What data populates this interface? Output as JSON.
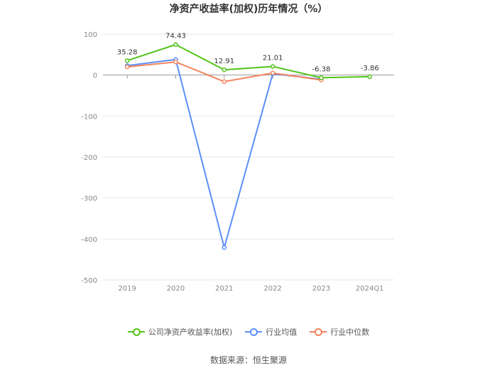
{
  "title": "净资产收益率(加权)历年情况（%）",
  "source": "数据来源：恒生聚源",
  "colors": {
    "company": "#52c41a",
    "industry_avg": "#5b8ff9",
    "industry_median": "#f4845f",
    "grid": "#e6e6e6",
    "axis": "#999999"
  },
  "chart_data": {
    "type": "line",
    "title": "净资产收益率(加权)历年情况（%）",
    "categories": [
      "2019",
      "2020",
      "2021",
      "2022",
      "2023",
      "2024Q1"
    ],
    "ylim": [
      -500,
      100
    ],
    "yticks": [
      100,
      0,
      -100,
      -200,
      -300,
      -400,
      -500
    ],
    "grid": true,
    "legend_position": "bottom",
    "series": [
      {
        "name": "公司净资产收益率(加权)",
        "key": "company",
        "values": [
          35.28,
          74.43,
          12.91,
          21.01,
          -6.38,
          -3.86
        ],
        "labels": [
          "35.28",
          "74.43",
          "12.91",
          "21.01",
          "-6.38",
          "-3.86"
        ]
      },
      {
        "name": "行业均值",
        "key": "industry_avg",
        "values": [
          23,
          38,
          -421,
          3,
          -10,
          null
        ]
      },
      {
        "name": "行业中位数",
        "key": "industry_median",
        "values": [
          20,
          32,
          -16,
          5,
          -12,
          null
        ]
      }
    ]
  }
}
